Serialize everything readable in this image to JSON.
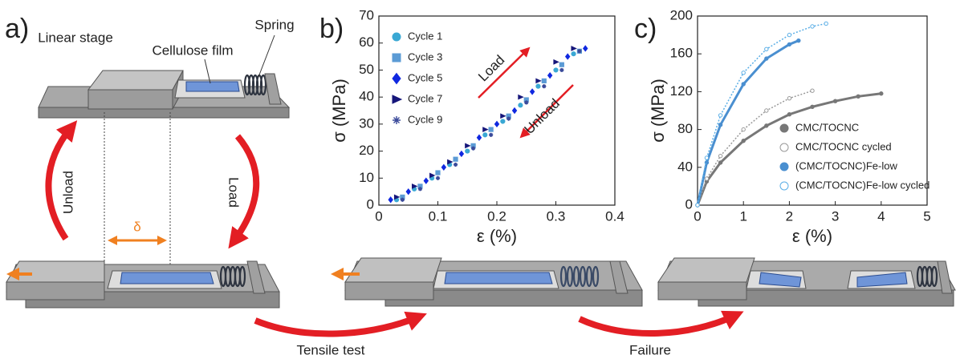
{
  "figure": {
    "panel_a": "a)",
    "linear_stage": "Linear stage",
    "cellulose_film": "Cellulose film",
    "spring": "Spring",
    "unload": "Unload",
    "load": "Load",
    "delta": "δ",
    "tensile_test": "Tensile test",
    "failure": "Failure"
  },
  "chart_data": [
    {
      "type": "scatter",
      "panel": "b)",
      "xlabel": "ε (%)",
      "ylabel": "σ (MPa)",
      "xlim": [
        0,
        0.4
      ],
      "xticks": [
        0,
        0.1,
        0.2,
        0.3,
        0.4
      ],
      "ylim": [
        0,
        70
      ],
      "yticks": [
        0,
        10,
        20,
        30,
        40,
        50,
        60,
        70
      ],
      "legend": "upper left",
      "annotations": [
        "Load",
        "Unload"
      ],
      "series": [
        {
          "name": "Cycle 1",
          "color": "#3aa8d4",
          "marker": "circle",
          "filled": true,
          "x": [
            0.03,
            0.06,
            0.09,
            0.12,
            0.15,
            0.18,
            0.21,
            0.24,
            0.27,
            0.3,
            0.33
          ],
          "values": [
            2,
            6,
            10,
            15,
            20,
            26,
            31,
            37,
            44,
            50,
            56
          ]
        },
        {
          "name": "Cycle 3",
          "color": "#5b9bd5",
          "marker": "square",
          "filled": true,
          "x": [
            0.04,
            0.07,
            0.1,
            0.13,
            0.16,
            0.19,
            0.22,
            0.25,
            0.28,
            0.31,
            0.34
          ],
          "values": [
            3,
            7,
            12,
            17,
            22,
            28,
            33,
            39,
            46,
            52,
            57
          ]
        },
        {
          "name": "Cycle 5",
          "color": "#1028e0",
          "marker": "diamond",
          "filled": true,
          "x": [
            0.02,
            0.05,
            0.08,
            0.11,
            0.14,
            0.17,
            0.2,
            0.23,
            0.26,
            0.29,
            0.32,
            0.35
          ],
          "values": [
            2,
            5,
            9,
            14,
            19,
            25,
            30,
            35,
            42,
            48,
            55,
            58
          ]
        },
        {
          "name": "Cycle 7",
          "color": "#16167a",
          "marker": "triangle",
          "filled": true,
          "x": [
            0.03,
            0.06,
            0.09,
            0.12,
            0.15,
            0.18,
            0.21,
            0.24,
            0.27,
            0.3,
            0.33
          ],
          "values": [
            3,
            7,
            11,
            16,
            22,
            28,
            33,
            40,
            46,
            53,
            58
          ]
        },
        {
          "name": "Cycle 9",
          "color": "#3a4a9a",
          "marker": "star",
          "filled": true,
          "x": [
            0.04,
            0.07,
            0.1,
            0.13,
            0.16,
            0.19,
            0.22,
            0.25,
            0.28,
            0.31,
            0.34
          ],
          "values": [
            2,
            6,
            10,
            15,
            21,
            26,
            32,
            38,
            44,
            50,
            57
          ]
        }
      ]
    },
    {
      "type": "scatter",
      "panel": "c)",
      "xlabel": "ε (%)",
      "ylabel": "σ (MPa)",
      "xlim": [
        0,
        5
      ],
      "xticks": [
        0,
        1,
        2,
        3,
        4,
        5
      ],
      "ylim": [
        0,
        200
      ],
      "yticks": [
        0,
        40,
        80,
        120,
        160,
        200
      ],
      "legend": "lower right",
      "series": [
        {
          "name": "CMC/TOCNC",
          "color": "#777777",
          "marker": "circle",
          "filled": true,
          "x": [
            0,
            0.2,
            0.5,
            1,
            1.5,
            2,
            2.5,
            3,
            3.5,
            4
          ],
          "values": [
            0,
            25,
            45,
            68,
            84,
            96,
            104,
            110,
            115,
            118
          ]
        },
        {
          "name": "CMC/TOCNC cycled",
          "color": "#999999",
          "marker": "circle",
          "filled": false,
          "x": [
            0,
            0.2,
            0.5,
            1,
            1.5,
            2,
            2.5
          ],
          "values": [
            0,
            28,
            52,
            80,
            100,
            113,
            121
          ]
        },
        {
          "name": "(CMC/TOCNC)Fe-low",
          "color": "#4a8fd0",
          "marker": "circle",
          "filled": true,
          "x": [
            0,
            0.2,
            0.5,
            1,
            1.5,
            2,
            2.2
          ],
          "values": [
            0,
            45,
            85,
            128,
            155,
            170,
            174
          ]
        },
        {
          "name": "(CMC/TOCNC)Fe-low cycled",
          "color": "#5aaee6",
          "marker": "circle",
          "filled": false,
          "x": [
            0,
            0.2,
            0.5,
            1,
            1.5,
            2,
            2.5,
            2.8
          ],
          "values": [
            0,
            50,
            95,
            140,
            165,
            180,
            189,
            192
          ]
        }
      ]
    }
  ]
}
